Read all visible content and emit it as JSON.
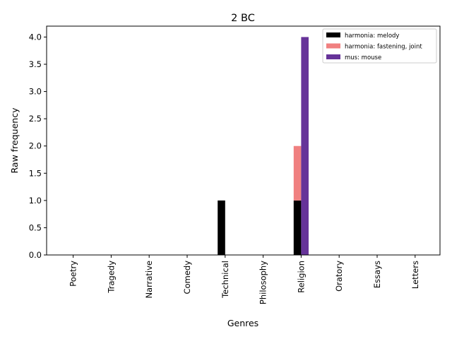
{
  "chart_data": {
    "type": "bar",
    "stacked": true,
    "title": "2 BC",
    "xlabel": "Genres",
    "ylabel": "Raw frequency",
    "categories": [
      "Poetry",
      "Tragedy",
      "Narrative",
      "Comedy",
      "Technical",
      "Philosophy",
      "Religion",
      "Oratory",
      "Essays",
      "Letters"
    ],
    "ylim": [
      0,
      4.2
    ],
    "yticks": [
      "0.0",
      "0.5",
      "1.0",
      "1.5",
      "2.0",
      "2.5",
      "3.0",
      "3.5",
      "4.0"
    ],
    "legend_position": "upper right",
    "grid": false,
    "series": [
      {
        "name": "harmonia: melody",
        "color": "#000000",
        "stack": "harmonia",
        "values": [
          0,
          0,
          0,
          0,
          1,
          0,
          1,
          0,
          0,
          0
        ]
      },
      {
        "name": "harmonia: fastening, joint",
        "color": "#f08080",
        "stack": "harmonia",
        "values": [
          0,
          0,
          0,
          0,
          0,
          0,
          1,
          0,
          0,
          0
        ]
      },
      {
        "name": "mus: mouse",
        "color": "#663399",
        "stack": "mus",
        "values": [
          0,
          0,
          0,
          0,
          0,
          0,
          4,
          0,
          0,
          0
        ]
      }
    ]
  }
}
